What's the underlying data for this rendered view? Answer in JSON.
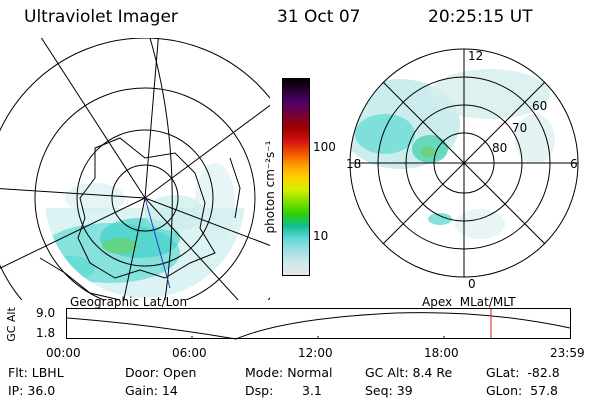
{
  "header": {
    "instrument": "Ultraviolet Imager",
    "date": "31 Oct 07",
    "time": "20:25:15 UT"
  },
  "left_panel": {
    "caption": "Geographic Lat/Lon"
  },
  "right_panel": {
    "caption": "Apex  MLat/MLT",
    "mlt_labels": [
      "12",
      "18",
      "6",
      "0"
    ],
    "lat_labels": [
      "60",
      "70",
      "80"
    ]
  },
  "colorbar": {
    "unit_label": "photon cm⁻²s⁻¹",
    "ticks": [
      "100",
      "10"
    ],
    "colors": [
      "#000000",
      "#2a0038",
      "#52006a",
      "#7a0030",
      "#a00000",
      "#d01010",
      "#f05000",
      "#ff9a00",
      "#ffd000",
      "#d8f000",
      "#80e000",
      "#30d000",
      "#10c090",
      "#60d8d8",
      "#a0e0e0",
      "#d0e8e8",
      "#e8e8e8"
    ]
  },
  "altitude_plot": {
    "axis_label": "GC Alt",
    "y_ticks": [
      "9.0",
      "1.8"
    ],
    "x_ticks": [
      "00:00",
      "06:00",
      "12:00",
      "18:00",
      "23:59"
    ],
    "marker_color": "#d02020"
  },
  "status": {
    "filter": "Flt: LBHL",
    "door": "Door: Open",
    "mode": "Mode: Normal",
    "gc_alt": "GC Alt: 8.4 Re",
    "glat": "GLat:  -82.8",
    "ip": "IP: 36.0",
    "gain": "Gain: 14",
    "dsp_label": "Dsp:",
    "dsp_value": "3.1",
    "seq": "Seq: 39",
    "glon": "GLon:  57.8"
  }
}
